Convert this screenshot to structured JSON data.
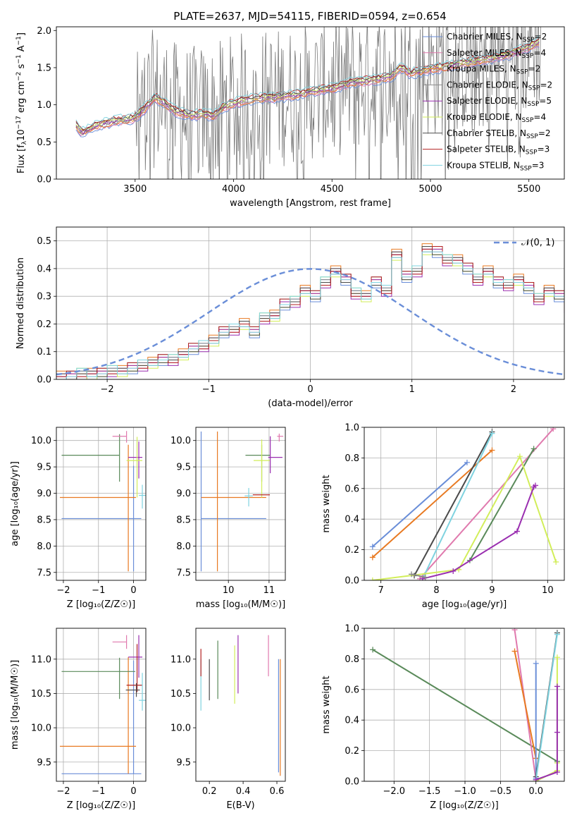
{
  "figure": {
    "title": "PLATE=2637, MJD=54115, FIBERID=0594, z=0.654"
  },
  "colors": {
    "Chabrier MILES": "#6a8ed8",
    "Salpeter MILES": "#e07aae",
    "Kroupa MILES": "#e87a22",
    "Chabrier ELODIE": "#8a8a8a",
    "Salpeter ELODIE": "#9a2fb0",
    "Kroupa ELODIE": "#d2ee5a",
    "Chabrier STELIB": "#4a4a4a",
    "Salpeter STELIB": "#b22222",
    "Kroupa STELIB": "#7fd3e0",
    "green": "#5a8a5a",
    "grid": "#b0b0b0"
  },
  "chart_data": [
    {
      "id": "spectrum",
      "type": "line",
      "title": "PLATE=2637, MJD=54115, FIBERID=0594, z=0.654",
      "xlabel": "wavelength [Angstrom, rest frame]",
      "ylabel_parts": [
        "Flux [f",
        "λ",
        "10",
        "−17",
        " erg cm",
        "−2",
        " s",
        "−1",
        " A",
        "−1",
        "]"
      ],
      "xlim": [
        3100,
        5680
      ],
      "ylim": [
        0,
        2.05
      ],
      "xticks": [
        3500,
        4000,
        4500,
        5000,
        5500
      ],
      "yticks": [
        0.0,
        0.5,
        1.0,
        1.5,
        2.0
      ],
      "grid": false,
      "legend_position": "right",
      "legend": [
        {
          "label": "Chabrier MILES, N",
          "sub": "SSP",
          "suffix": "=2",
          "color": "#6a8ed8"
        },
        {
          "label": "Salpeter MILES, N",
          "sub": "SSP",
          "suffix": "=4",
          "color": "#e07aae"
        },
        {
          "label": "Kroupa MILES, N",
          "sub": "SSP",
          "suffix": "=2",
          "color": "#e87a22"
        },
        {
          "label": "Chabrier ELODIE, N",
          "sub": "SSP",
          "suffix": "=2",
          "color": "#8a8a8a"
        },
        {
          "label": "Salpeter ELODIE, N",
          "sub": "SSP",
          "suffix": "=5",
          "color": "#9a2fb0"
        },
        {
          "label": "Kroupa ELODIE, N",
          "sub": "SSP",
          "suffix": "=4",
          "color": "#d2ee5a"
        },
        {
          "label": "Chabrier STELIB, N",
          "sub": "SSP",
          "suffix": "=2",
          "color": "#4a4a4a"
        },
        {
          "label": "Salpeter STELIB, N",
          "sub": "SSP",
          "suffix": "=3",
          "color": "#b22222"
        },
        {
          "label": "Kroupa STELIB, N",
          "sub": "SSP",
          "suffix": "=3",
          "color": "#7fd3e0"
        }
      ],
      "model_envelope": [
        [
          3200,
          0.72
        ],
        [
          3230,
          0.62
        ],
        [
          3260,
          0.66
        ],
        [
          3300,
          0.72
        ],
        [
          3350,
          0.75
        ],
        [
          3400,
          0.78
        ],
        [
          3450,
          0.8
        ],
        [
          3500,
          0.82
        ],
        [
          3550,
          0.95
        ],
        [
          3600,
          1.1
        ],
        [
          3650,
          1.02
        ],
        [
          3700,
          0.92
        ],
        [
          3750,
          0.88
        ],
        [
          3800,
          0.86
        ],
        [
          3850,
          0.88
        ],
        [
          3900,
          0.85
        ],
        [
          3950,
          0.97
        ],
        [
          4000,
          1.02
        ],
        [
          4100,
          1.08
        ],
        [
          4200,
          1.1
        ],
        [
          4300,
          1.12
        ],
        [
          4400,
          1.18
        ],
        [
          4500,
          1.22
        ],
        [
          4600,
          1.3
        ],
        [
          4700,
          1.33
        ],
        [
          4800,
          1.38
        ],
        [
          4850,
          1.5
        ],
        [
          4900,
          1.42
        ],
        [
          5000,
          1.48
        ],
        [
          5100,
          1.52
        ],
        [
          5200,
          1.58
        ],
        [
          5300,
          1.62
        ],
        [
          5400,
          1.68
        ],
        [
          5500,
          1.78
        ],
        [
          5550,
          1.85
        ]
      ]
    },
    {
      "id": "residuals",
      "type": "step",
      "xlabel": "(data-model)/error",
      "ylabel": "Normed distribution",
      "xlim": [
        -2.5,
        2.5
      ],
      "ylim": [
        0,
        0.55
      ],
      "xticks": [
        -2,
        -1,
        0,
        1,
        2
      ],
      "yticks": [
        0.0,
        0.1,
        0.2,
        0.3,
        0.4,
        0.5
      ],
      "grid": true,
      "legend_position": "top-right",
      "legend": [
        {
          "label": "𝒩(0, 1)",
          "color": "#6a8ed8",
          "style": "dashed"
        }
      ],
      "bin_edges_start": -2.5,
      "bin_width": 0.1,
      "histogram": [
        0.01,
        0.01,
        0.02,
        0.02,
        0.02,
        0.03,
        0.03,
        0.04,
        0.05,
        0.06,
        0.07,
        0.07,
        0.09,
        0.11,
        0.12,
        0.14,
        0.17,
        0.18,
        0.2,
        0.17,
        0.22,
        0.23,
        0.27,
        0.28,
        0.32,
        0.3,
        0.35,
        0.39,
        0.36,
        0.31,
        0.3,
        0.35,
        0.32,
        0.45,
        0.37,
        0.39,
        0.47,
        0.46,
        0.43,
        0.43,
        0.4,
        0.36,
        0.39,
        0.35,
        0.34,
        0.36,
        0.33,
        0.29,
        0.32,
        0.3,
        0.26,
        0.31,
        0.3,
        0.27,
        0.26,
        0.23,
        0.31,
        0.22,
        0.22,
        0.19,
        0.18,
        0.19,
        0.16,
        0.14,
        0.1,
        0.1,
        0.07,
        0.06,
        0.07,
        0.1,
        0.08,
        0.06,
        0.06,
        0.04,
        0.05
      ],
      "series_offsets": {
        "Chabrier MILES": [
          0.0,
          -0.02,
          0.01
        ],
        "Salpeter MILES": [
          0.01,
          0.0,
          -0.01
        ],
        "Kroupa MILES": [
          0.02,
          0.01,
          0.0
        ],
        "Chabrier ELODIE": [
          -0.01,
          0.02,
          0.01
        ],
        "Salpeter ELODIE": [
          0.0,
          0.01,
          -0.02
        ],
        "Kroupa ELODIE": [
          -0.02,
          -0.01,
          0.02
        ],
        "Chabrier STELIB": [
          0.01,
          -0.01,
          0.0
        ],
        "Salpeter STELIB": [
          0.0,
          0.02,
          -0.01
        ],
        "Kroupa STELIB": [
          -0.01,
          0.0,
          0.02
        ]
      }
    },
    {
      "id": "age_vs_Z",
      "type": "errorbar",
      "xlabel": "Z [log₁₀(Z/Z☉)]",
      "ylabel": "age  [log₁₀(age/yr)]",
      "xlim": [
        -2.2,
        0.35
      ],
      "ylim": [
        7.35,
        10.25
      ],
      "xticks": [
        -2,
        -1,
        0
      ],
      "yticks": [
        7.5,
        8.0,
        8.5,
        9.0,
        9.5,
        10.0
      ],
      "grid": true,
      "points": [
        {
          "color": "#6a8ed8",
          "x": 0.0,
          "xerr": [
            2.05,
            0.22
          ],
          "y": 8.52,
          "yerr": [
            1.0,
            1.0
          ]
        },
        {
          "color": "#e87a22",
          "x": -0.15,
          "xerr": [
            1.95,
            0.22
          ],
          "y": 8.92,
          "yerr": [
            1.4,
            1.0
          ]
        },
        {
          "color": "#5a8a5a",
          "x": -0.4,
          "xerr": [
            1.65,
            0.0
          ],
          "y": 9.72,
          "yerr": [
            0.5,
            0.4
          ]
        },
        {
          "color": "#e07aae",
          "x": -0.2,
          "xerr": [
            0.4,
            0.0
          ],
          "y": 10.08,
          "yerr": [
            0.12,
            0.1
          ]
        },
        {
          "color": "#9a2fb0",
          "x": 0.15,
          "xerr": [
            0.3,
            0.1
          ],
          "y": 9.68,
          "yerr": [
            0.4,
            0.3
          ]
        },
        {
          "color": "#d2ee5a",
          "x": 0.1,
          "xerr": [
            0.3,
            0.15
          ],
          "y": 9.62,
          "yerr": [
            0.7,
            0.45
          ]
        },
        {
          "color": "#7fd3e0",
          "x": 0.25,
          "xerr": [
            0.1,
            0.1
          ],
          "y": 8.96,
          "yerr": [
            0.25,
            0.2
          ]
        }
      ]
    },
    {
      "id": "age_vs_mass",
      "type": "errorbar",
      "xlabel": "mass [log₁₀(M/M☉)]",
      "xlim": [
        9.2,
        11.4
      ],
      "ylim": [
        7.35,
        10.25
      ],
      "xticks": [
        10,
        11
      ],
      "yticks": [
        7.5,
        8.0,
        8.5,
        9.0,
        9.5,
        10.0
      ],
      "grid": true,
      "points": [
        {
          "color": "#6a8ed8",
          "x": 9.33,
          "xerr": [
            0.0,
            1.6
          ],
          "y": 8.52,
          "yerr": [
            1.0,
            1.65
          ]
        },
        {
          "color": "#e87a22",
          "x": 9.73,
          "xerr": [
            0.4,
            1.2
          ],
          "y": 8.92,
          "yerr": [
            1.4,
            1.25
          ]
        },
        {
          "color": "#5a8a5a",
          "x": 10.82,
          "xerr": [
            0.4,
            0.2
          ],
          "y": 9.72,
          "yerr": [
            0.5,
            0.2
          ]
        },
        {
          "color": "#e07aae",
          "x": 11.25,
          "xerr": [
            0.05,
            0.1
          ],
          "y": 10.08,
          "yerr": [
            0.1,
            0.05
          ]
        },
        {
          "color": "#9a2fb0",
          "x": 11.03,
          "xerr": [
            0.05,
            0.3
          ],
          "y": 9.68,
          "yerr": [
            0.3,
            0.4
          ]
        },
        {
          "color": "#d2ee5a",
          "x": 10.82,
          "xerr": [
            0.2,
            0.2
          ],
          "y": 9.62,
          "yerr": [
            0.7,
            0.4
          ]
        },
        {
          "color": "#b22222",
          "x": 10.6,
          "xerr": [
            0.0,
            0.42
          ],
          "y": 8.97,
          "yerr": [
            0.0,
            0.0
          ]
        },
        {
          "color": "#7fd3e0",
          "x": 10.5,
          "xerr": [
            0.1,
            0.1
          ],
          "y": 8.95,
          "yerr": [
            0.2,
            0.15
          ]
        }
      ]
    },
    {
      "id": "weight_vs_age",
      "type": "line",
      "xlabel": "age  [log₁₀(age/yr)]",
      "ylabel": "mass weight",
      "xlim": [
        6.7,
        10.3
      ],
      "ylim": [
        0,
        1.0
      ],
      "xticks": [
        7,
        8,
        9,
        10
      ],
      "yticks": [
        0.0,
        0.2,
        0.4,
        0.6,
        0.8,
        1.0
      ],
      "grid": true,
      "series": [
        {
          "color": "#6a8ed8",
          "x": [
            6.85,
            8.55
          ],
          "y": [
            0.22,
            0.77
          ]
        },
        {
          "color": "#e87a22",
          "x": [
            6.85,
            9.0
          ],
          "y": [
            0.15,
            0.85
          ]
        },
        {
          "color": "#e07aae",
          "x": [
            7.7,
            10.1
          ],
          "y": [
            0.01,
            0.99
          ]
        },
        {
          "color": "#4a4a4a",
          "x": [
            7.6,
            9.0
          ],
          "y": [
            0.03,
            0.97
          ]
        },
        {
          "color": "#7fd3e0",
          "x": [
            7.75,
            9.0
          ],
          "y": [
            0.01,
            0.96
          ]
        },
        {
          "color": "#5a8a5a",
          "x": [
            8.6,
            9.75
          ],
          "y": [
            0.13,
            0.86
          ]
        },
        {
          "color": "#d2ee5a",
          "x": [
            6.85,
            8.4,
            9.5,
            10.15
          ],
          "y": [
            0.0,
            0.07,
            0.81,
            0.12
          ]
        },
        {
          "color": "#9a2fb0",
          "x": [
            7.75,
            8.3,
            9.45,
            9.75,
            9.78
          ],
          "y": [
            0.01,
            0.06,
            0.32,
            0.61,
            0.62
          ]
        },
        {
          "color": "#8a8a8a",
          "x": [
            7.55,
            7.8
          ],
          "y": [
            0.04,
            0.02
          ]
        }
      ]
    },
    {
      "id": "mass_vs_Z",
      "type": "errorbar",
      "xlabel": "Z [log₁₀(Z/Z☉)]",
      "ylabel": "mass [log₁₀(M/M☉)]",
      "xlim": [
        -2.2,
        0.35
      ],
      "ylim": [
        9.22,
        11.45
      ],
      "xticks": [
        -2,
        -1,
        0
      ],
      "yticks": [
        9.5,
        10.0,
        10.5,
        11.0
      ],
      "grid": true,
      "points": [
        {
          "color": "#6a8ed8",
          "x": 0.0,
          "xerr": [
            2.05,
            0.22
          ],
          "y": 9.33,
          "yerr": [
            0.0,
            1.65
          ]
        },
        {
          "color": "#e87a22",
          "x": -0.15,
          "xerr": [
            1.95,
            0.22
          ],
          "y": 9.73,
          "yerr": [
            0.4,
            1.3
          ]
        },
        {
          "color": "#5a8a5a",
          "x": -0.4,
          "xerr": [
            1.65,
            0.45
          ],
          "y": 10.82,
          "yerr": [
            0.4,
            0.2
          ]
        },
        {
          "color": "#e07aae",
          "x": -0.2,
          "xerr": [
            0.4,
            0.0
          ],
          "y": 11.25,
          "yerr": [
            0.1,
            0.1
          ]
        },
        {
          "color": "#9a2fb0",
          "x": 0.15,
          "xerr": [
            0.3,
            0.1
          ],
          "y": 11.03,
          "yerr": [
            0.3,
            0.32
          ]
        },
        {
          "color": "#b22222",
          "x": 0.1,
          "xerr": [
            0.3,
            0.15
          ],
          "y": 10.62,
          "yerr": [
            0.1,
            0.6
          ]
        },
        {
          "color": "#4a4a4a",
          "x": 0.08,
          "xerr": [
            0.3,
            0.1
          ],
          "y": 10.55,
          "yerr": [
            0.1,
            0.1
          ]
        },
        {
          "color": "#7fd3e0",
          "x": 0.25,
          "xerr": [
            0.1,
            0.1
          ],
          "y": 10.4,
          "yerr": [
            0.15,
            0.4
          ]
        }
      ]
    },
    {
      "id": "mass_vs_ebv",
      "type": "errorbar",
      "xlabel": "E(B-V)",
      "xlim": [
        0.12,
        0.65
      ],
      "ylim": [
        9.22,
        11.45
      ],
      "xticks": [
        0.2,
        0.4,
        0.6
      ],
      "yticks": [
        9.5,
        10.0,
        10.5,
        11.0
      ],
      "grid": false,
      "points": [
        {
          "color": "#7fd3e0",
          "x": 0.15,
          "y": 10.7,
          "yerr": [
            0.45,
            0.3
          ]
        },
        {
          "color": "#b22222",
          "x": 0.15,
          "y": 11.0,
          "yerr": [
            0.25,
            0.15
          ]
        },
        {
          "color": "#4a4a4a",
          "x": 0.2,
          "y": 10.7,
          "yerr": [
            0.3,
            0.3
          ]
        },
        {
          "color": "#5a8a5a",
          "x": 0.25,
          "y": 10.82,
          "yerr": [
            0.4,
            0.45
          ]
        },
        {
          "color": "#d2ee5a",
          "x": 0.35,
          "y": 10.85,
          "yerr": [
            0.5,
            0.35
          ]
        },
        {
          "color": "#9a2fb0",
          "x": 0.37,
          "y": 10.95,
          "yerr": [
            0.45,
            0.4
          ]
        },
        {
          "color": "#e07aae",
          "x": 0.55,
          "y": 11.05,
          "yerr": [
            0.3,
            0.3
          ]
        },
        {
          "color": "#6a8ed8",
          "x": 0.61,
          "y": 10.2,
          "yerr": [
            0.85,
            0.8
          ]
        },
        {
          "color": "#e87a22",
          "x": 0.62,
          "y": 10.15,
          "yerr": [
            0.85,
            0.85
          ]
        }
      ]
    },
    {
      "id": "weight_vs_Z",
      "type": "line",
      "xlabel": "Z [log₁₀(Z/Z☉)]",
      "ylabel": "mass weight",
      "xlim": [
        -2.42,
        0.4
      ],
      "ylim": [
        0,
        1.0
      ],
      "xticks": [
        -2.0,
        -1.5,
        -1.0,
        -0.5,
        0.0
      ],
      "grid": true,
      "yticks": [
        0.0,
        0.2,
        0.4,
        0.6,
        0.8,
        1.0
      ],
      "series": [
        {
          "color": "#5a8a5a",
          "x": [
            -2.3,
            0.3
          ],
          "y": [
            0.86,
            0.13
          ]
        },
        {
          "color": "#e07aae",
          "x": [
            -0.3,
            0.0
          ],
          "y": [
            0.99,
            0.01
          ]
        },
        {
          "color": "#e87a22",
          "x": [
            -0.3,
            0.0
          ],
          "y": [
            0.85,
            0.15
          ]
        },
        {
          "color": "#6a8ed8",
          "x": [
            0.0,
            0.0
          ],
          "y": [
            0.77,
            0.02
          ]
        },
        {
          "color": "#4a4a4a",
          "x": [
            0.0,
            0.3
          ],
          "y": [
            0.03,
            0.97
          ]
        },
        {
          "color": "#7fd3e0",
          "x": [
            0.0,
            0.3
          ],
          "y": [
            0.01,
            0.96
          ]
        },
        {
          "color": "#d2ee5a",
          "x": [
            0.0,
            0.3,
            0.3,
            0.3
          ],
          "y": [
            0.0,
            0.07,
            0.81,
            0.12
          ]
        },
        {
          "color": "#9a2fb0",
          "x": [
            0.0,
            0.3,
            0.3,
            0.3
          ],
          "y": [
            0.01,
            0.06,
            0.32,
            0.62
          ]
        }
      ]
    }
  ]
}
